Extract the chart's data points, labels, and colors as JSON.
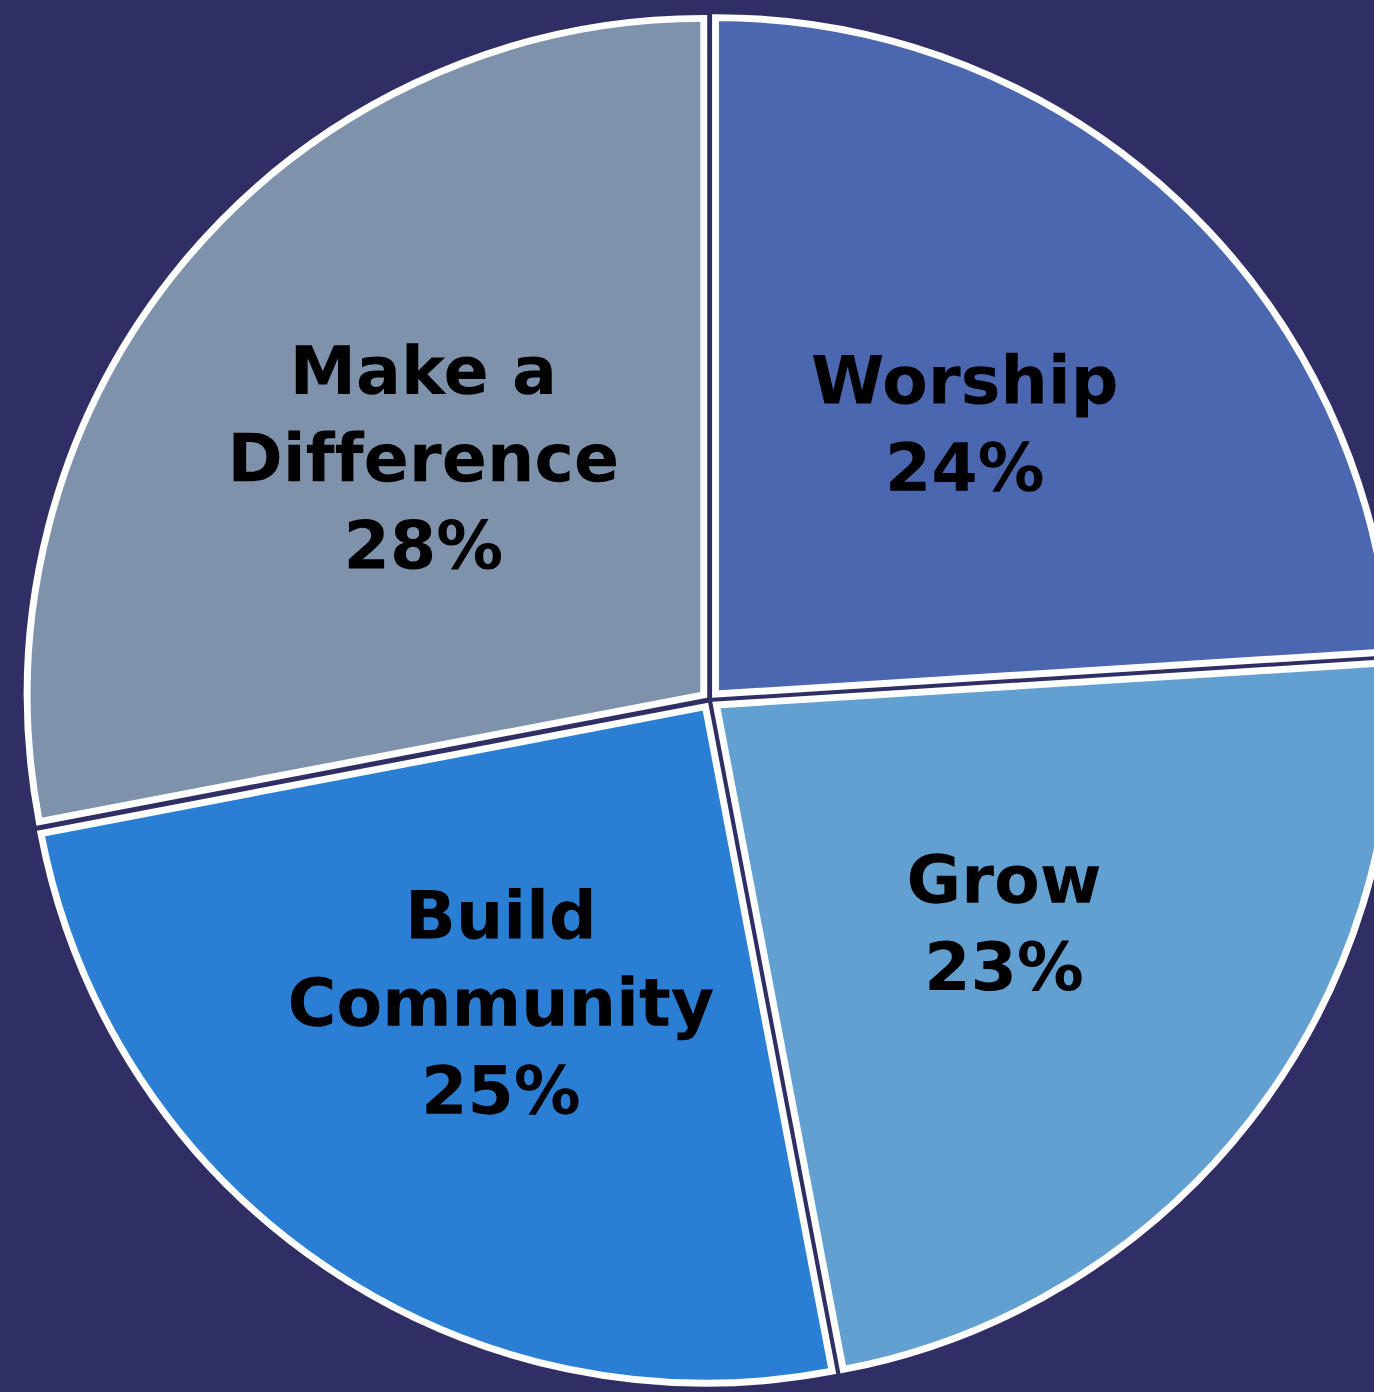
{
  "chart_data": {
    "type": "pie",
    "categories": [
      "Worship",
      "Grow",
      "Build\nCommunity",
      "Make a\nDifference"
    ],
    "values": [
      24,
      23,
      25,
      28
    ],
    "value_labels": [
      "24%",
      "23%",
      "25%",
      "28%"
    ],
    "colors": [
      "#4a67b0",
      "#62a0d2",
      "#2a7fd5",
      "#7f92ac"
    ],
    "legend": false
  }
}
